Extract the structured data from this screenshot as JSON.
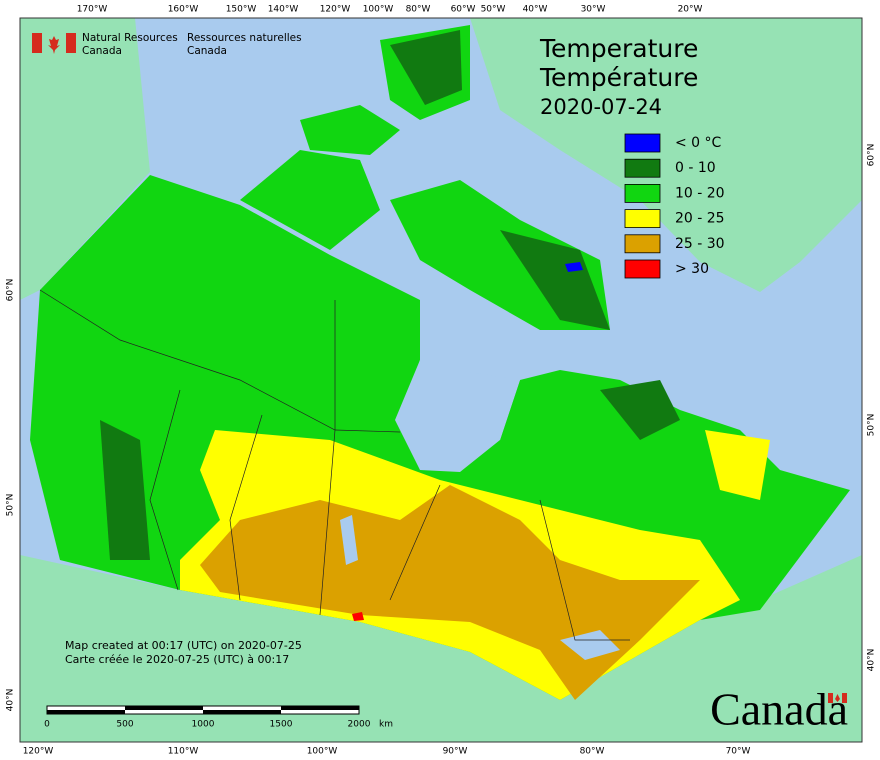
{
  "header": {
    "agency_en": [
      "Natural Resources",
      "Canada"
    ],
    "agency_fr": [
      "Ressources naturelles",
      "Canada"
    ]
  },
  "title": {
    "lines": [
      "Temperature",
      "Température"
    ],
    "date": "2020-07-24"
  },
  "legend": [
    {
      "label": "< 0 °C",
      "color": "#0000ff"
    },
    {
      "label": "0 - 10",
      "color": "#117a11"
    },
    {
      "label": "10 - 20",
      "color": "#11d611"
    },
    {
      "label": "20 - 25",
      "color": "#ffff00"
    },
    {
      "label": "25 - 30",
      "color": "#dba100"
    },
    {
      "label": "> 30",
      "color": "#ff0000"
    }
  ],
  "graticule": {
    "top": [
      "170°W",
      "160°W",
      "150°W",
      "140°W",
      "120°W",
      "100°W",
      "80°W",
      "60°W",
      "50°W",
      "40°W",
      "30°W",
      "20°W"
    ],
    "bottom": [
      "120°W",
      "110°W",
      "100°W",
      "90°W",
      "80°W",
      "70°W"
    ],
    "left": [
      "60°N",
      "50°N",
      "40°N"
    ],
    "right": [
      "60°N",
      "50°N",
      "40°N"
    ]
  },
  "notes": [
    "Map created at 00:17 (UTC) on 2020-07-25",
    "Carte créée le 2020-07-25 (UTC) à 00:17"
  ],
  "scale_bar": {
    "labels": [
      "0",
      "500",
      "1000",
      "1500",
      "2000"
    ],
    "unit": "km"
  },
  "wordmark": "Canada"
}
